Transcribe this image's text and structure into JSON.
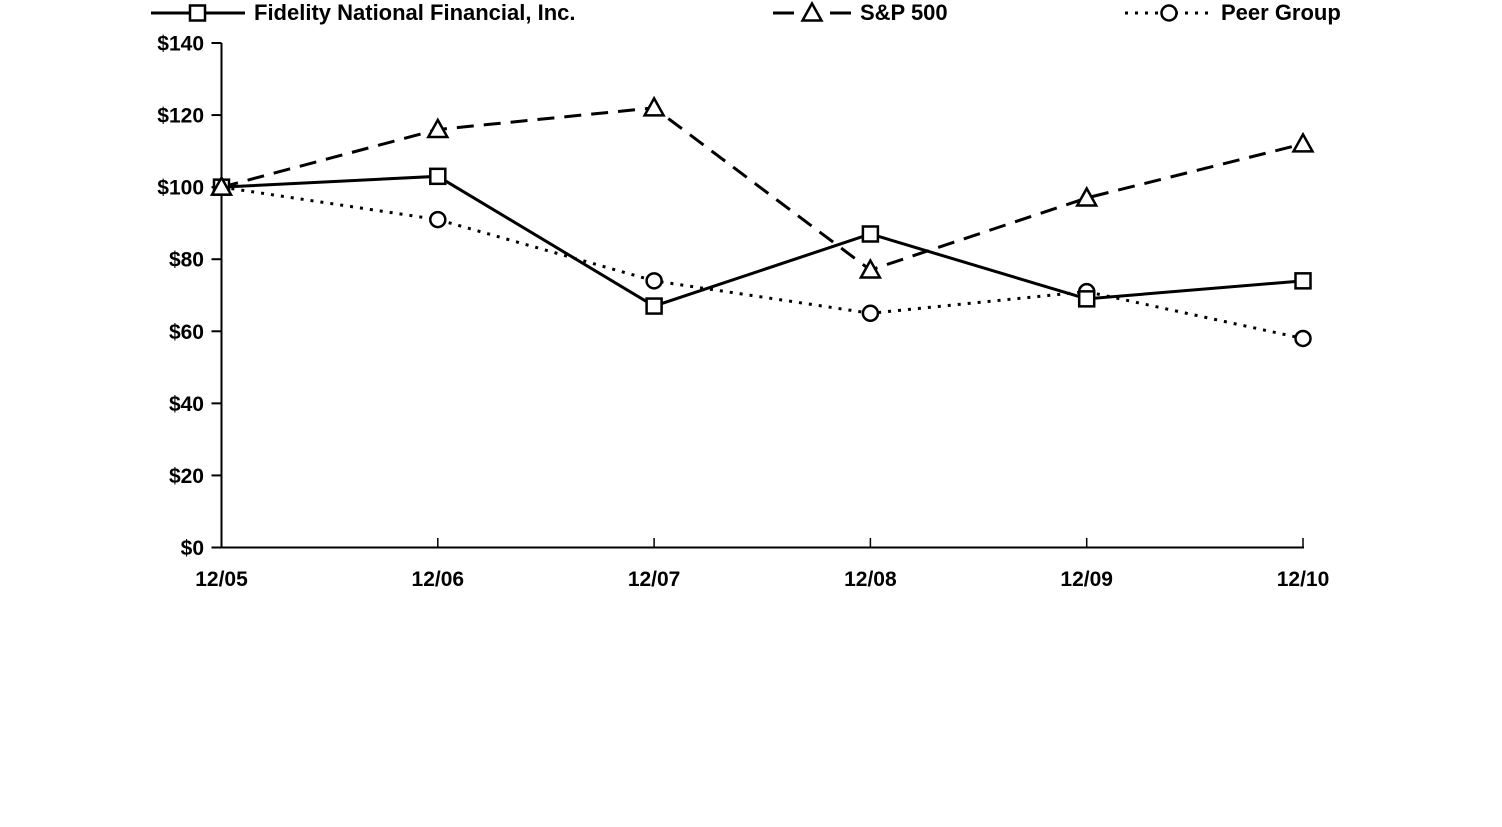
{
  "chart_data": {
    "type": "line",
    "x_categories": [
      "12/05",
      "12/06",
      "12/07",
      "12/08",
      "12/09",
      "12/10"
    ],
    "y_axis": {
      "min": 0,
      "max": 140,
      "tick_step": 20,
      "tick_labels": [
        "$0",
        "$20",
        "$40",
        "$60",
        "$80",
        "$100",
        "$120",
        "$140"
      ]
    },
    "grid": false,
    "legend_position": "bottom",
    "series": [
      {
        "name": "Fidelity National Financial, Inc.",
        "marker": "square",
        "line_style": "solid",
        "color": "#000000",
        "values": [
          100,
          103,
          67,
          87,
          69,
          74
        ]
      },
      {
        "name": "S&P 500",
        "marker": "triangle",
        "line_style": "dashed",
        "color": "#000000",
        "values": [
          100,
          116,
          122,
          77,
          97,
          112
        ]
      },
      {
        "name": "Peer Group",
        "marker": "circle",
        "line_style": "dotted",
        "color": "#000000",
        "values": [
          100,
          91,
          74,
          65,
          71,
          58
        ]
      }
    ]
  },
  "colors": {
    "background": "#ffffff",
    "axis": "#000000",
    "text": "#000000",
    "marker_fill": "#ffffff"
  }
}
